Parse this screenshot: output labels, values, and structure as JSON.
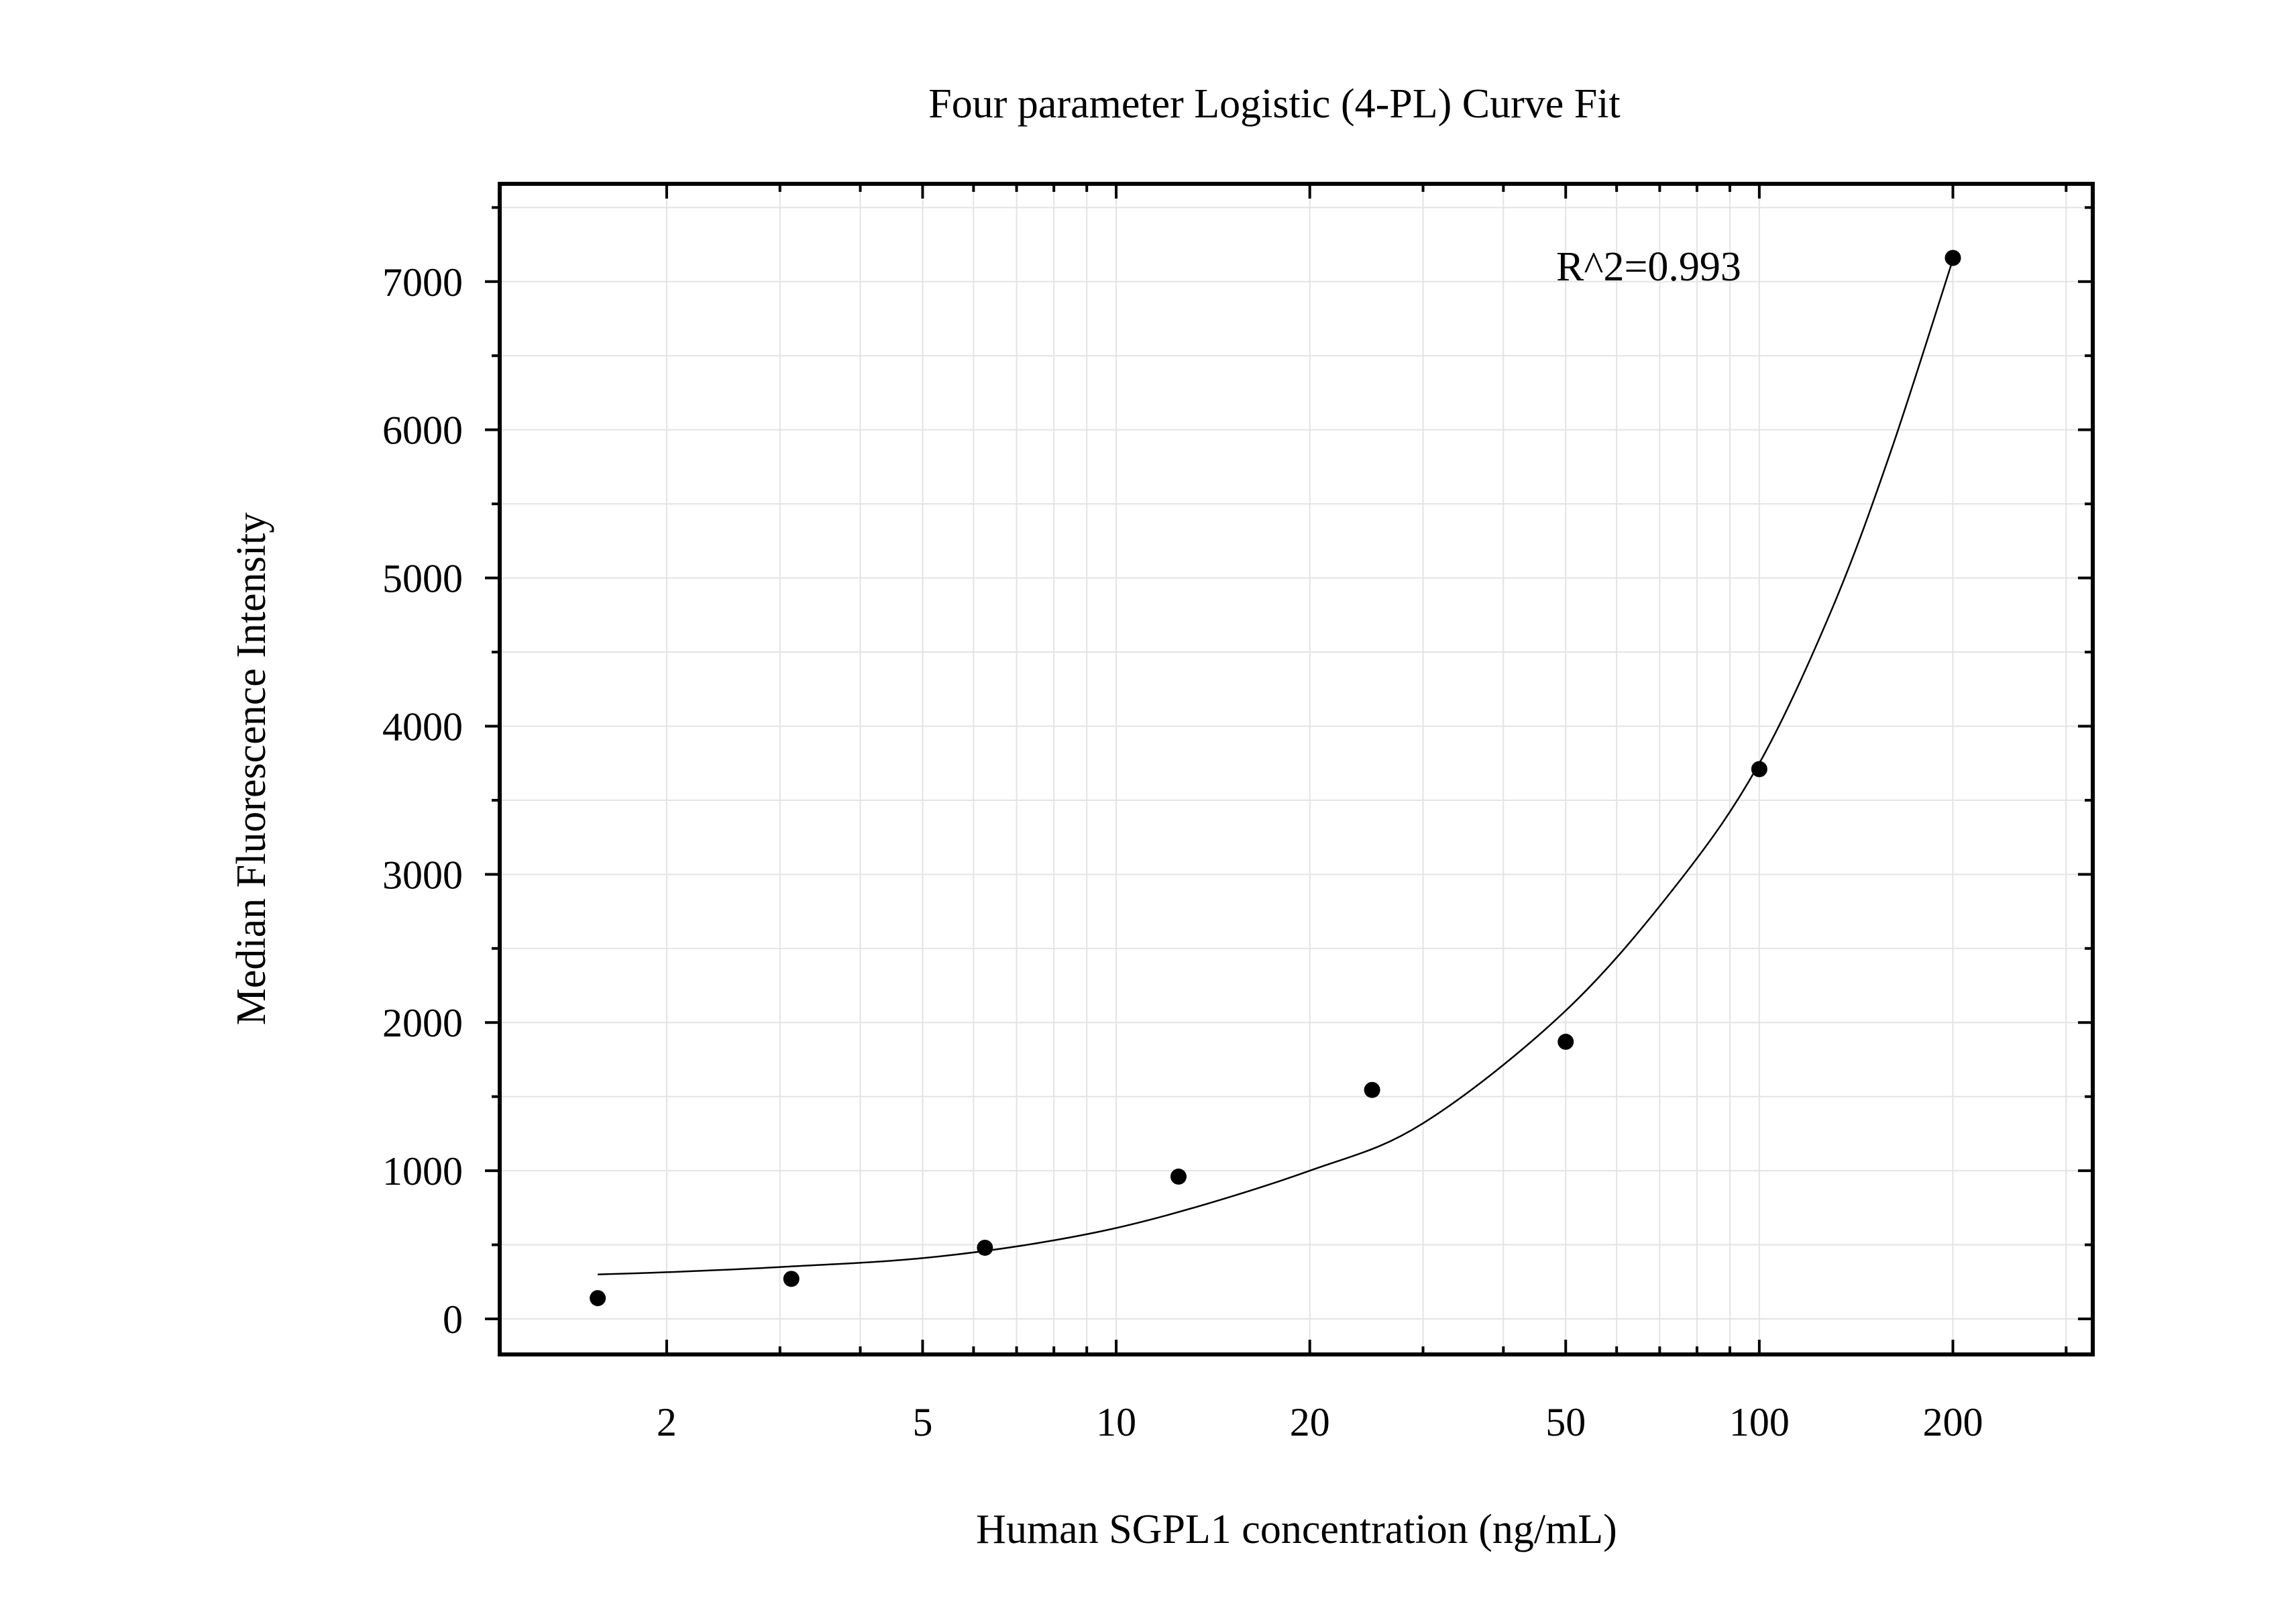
{
  "chart_data": {
    "type": "scatter",
    "title": "Four parameter Logistic (4-PL) Curve Fit",
    "xlabel": "Human SGPL1 concentration (ng/mL)",
    "ylabel": "Median Fluorescence Intensity",
    "x_scale": "log",
    "xlim": [
      1.1,
      330
    ],
    "ylim": [
      -240,
      7660
    ],
    "x_ticks": [
      2,
      5,
      10,
      20,
      50,
      100,
      200
    ],
    "x_tick_labels": [
      "2",
      "5",
      "10",
      "20",
      "50",
      "100",
      "200"
    ],
    "y_ticks": [
      0,
      1000,
      2000,
      3000,
      4000,
      5000,
      6000,
      7000
    ],
    "y_tick_labels": [
      "0",
      "1000",
      "2000",
      "3000",
      "4000",
      "5000",
      "6000",
      "7000"
    ],
    "grid": true,
    "annotation": "R^2=0.993",
    "points": {
      "x": [
        1.5625,
        3.125,
        6.25,
        12.5,
        25,
        50,
        100,
        200
      ],
      "y": [
        140,
        270,
        480,
        960,
        1545,
        1870,
        3710,
        7160
      ]
    },
    "fit_curve": {
      "x": [
        1.5625,
        2,
        3,
        5,
        8,
        12,
        20,
        30,
        50,
        75,
        100,
        130,
        160,
        200
      ],
      "y": [
        300,
        315,
        350,
        410,
        530,
        700,
        1000,
        1320,
        2080,
        2950,
        3750,
        4800,
        5850,
        7150
      ]
    }
  }
}
